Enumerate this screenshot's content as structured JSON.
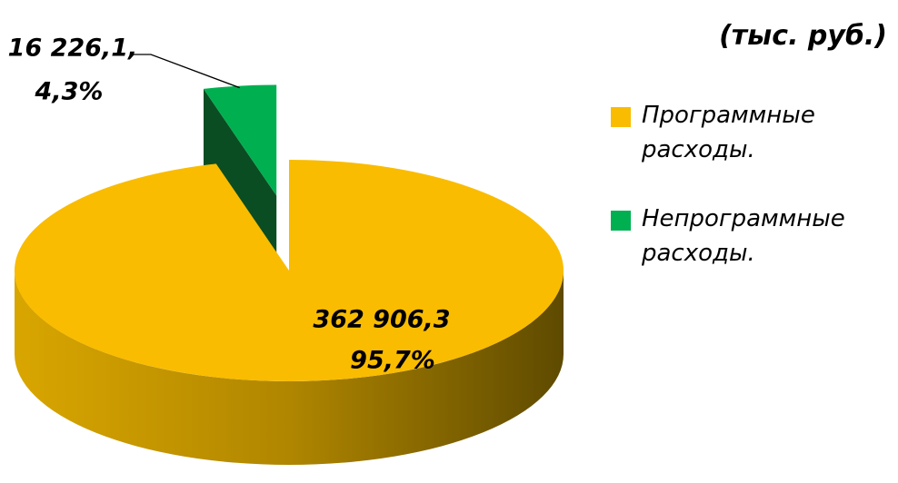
{
  "chart_data": {
    "type": "pie",
    "subtitle": "(тыс. руб.)",
    "categories": [
      "Программные расходы.",
      "Непрограммные расходы."
    ],
    "values": [
      362906.3,
      16226.1
    ],
    "value_labels": [
      "362 906,3",
      "16 226,1,"
    ],
    "percents": [
      95.7,
      4.3
    ],
    "percent_labels": [
      "95,7%",
      "4,3%"
    ],
    "colors": [
      "#F9BC00",
      "#00B050"
    ],
    "legend": "right"
  }
}
